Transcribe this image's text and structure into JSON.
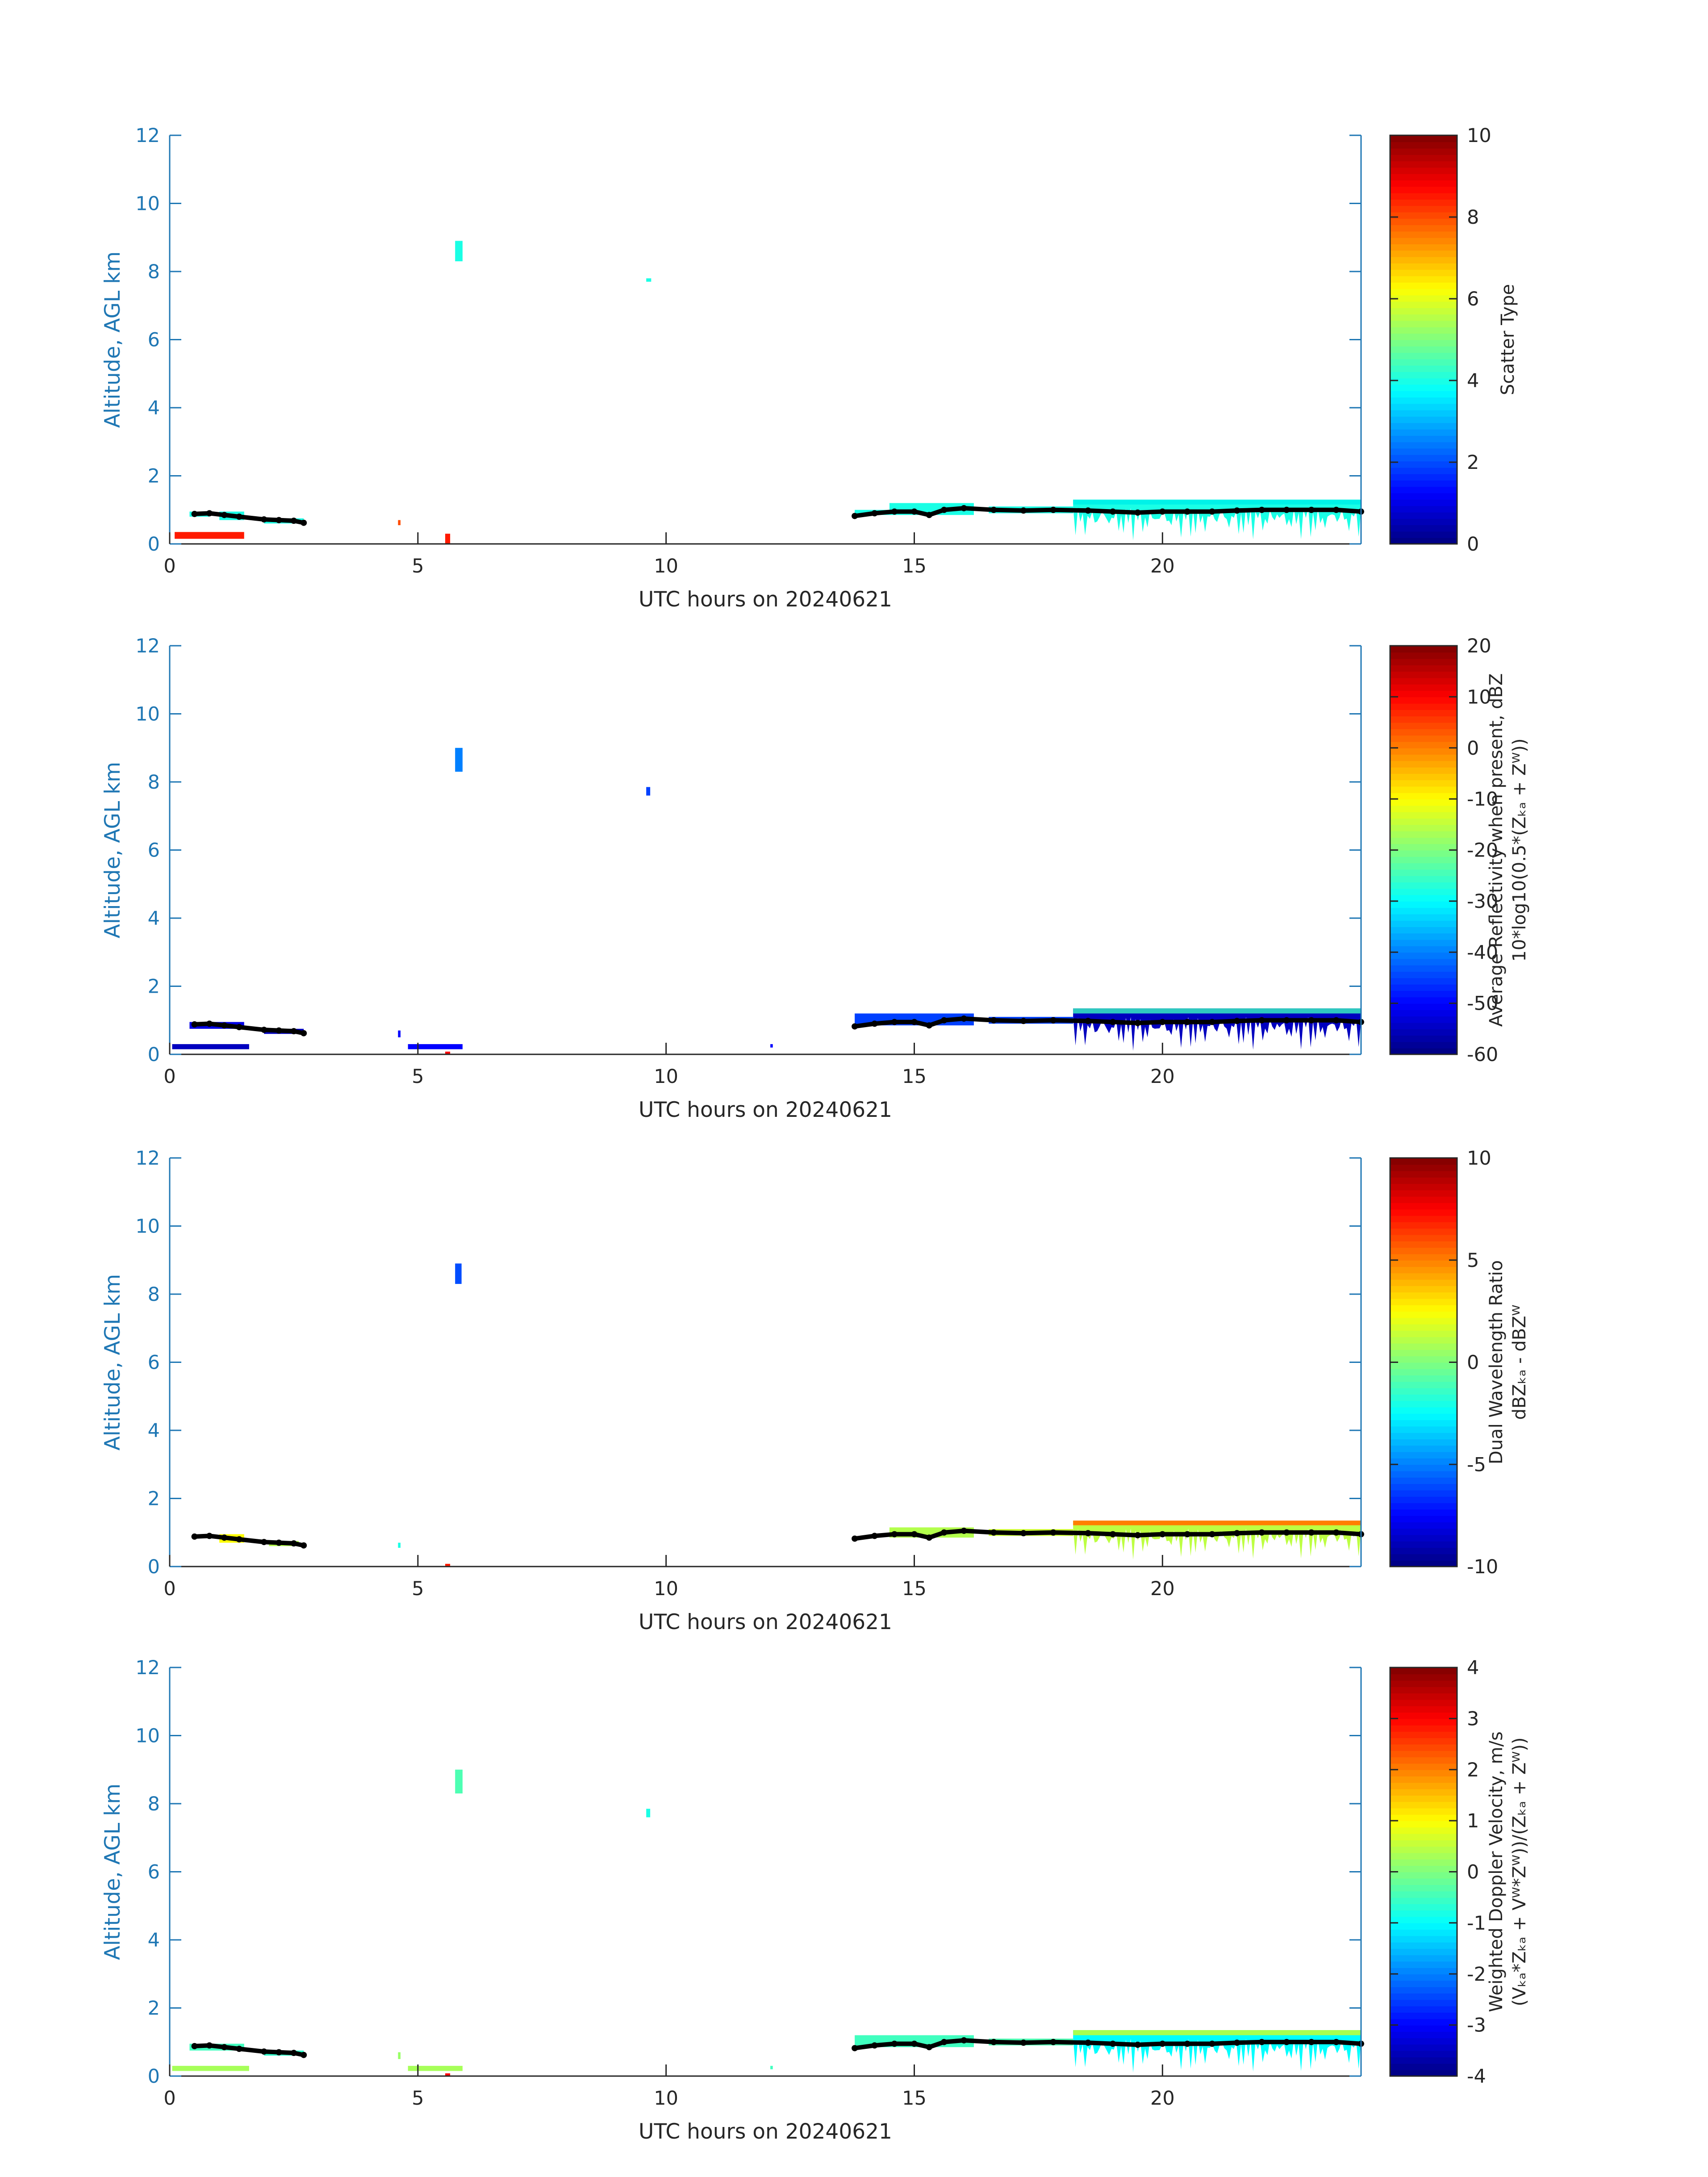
{
  "figure": {
    "xlabel": "UTC hours on 20240621",
    "ylabel": "Altitude, AGL km",
    "axis_color": "#1f77b4",
    "x_ticks": [
      0,
      5,
      10,
      15,
      20
    ],
    "y_ticks": [
      0,
      2,
      4,
      6,
      8,
      10,
      12
    ]
  },
  "chart_data": [
    {
      "type": "heatmap",
      "title": "",
      "xlabel": "UTC hours on 20240621",
      "ylabel": "Altitude, AGL km",
      "xlim": [
        0,
        24
      ],
      "ylim": [
        0,
        12
      ],
      "colormap": "jet",
      "colorbar": {
        "label_lines": [
          "Scatter Type"
        ],
        "ticks": [
          0,
          2,
          4,
          6,
          8,
          10
        ],
        "range": [
          0,
          10
        ]
      },
      "cloud_top_color": "#00f2e8",
      "features": [
        {
          "kind": "cloud",
          "x0": 0.4,
          "x1": 0.8,
          "y0": 0.8,
          "y1": 0.95,
          "value": 4.0
        },
        {
          "kind": "cloud",
          "x0": 1.0,
          "x1": 1.5,
          "y0": 0.7,
          "y1": 0.95,
          "value": 4.0
        },
        {
          "kind": "cloud",
          "x0": 1.9,
          "x1": 2.7,
          "y0": 0.6,
          "y1": 0.75,
          "value": 4.0
        },
        {
          "kind": "cloud",
          "x0": 5.75,
          "x1": 5.9,
          "y0": 8.3,
          "y1": 8.9,
          "value": 4.0
        },
        {
          "kind": "cloud",
          "x0": 9.6,
          "x1": 9.7,
          "y0": 7.7,
          "y1": 7.8,
          "value": 4.0
        },
        {
          "kind": "cloud",
          "x0": 13.8,
          "x1": 14.5,
          "y0": 0.85,
          "y1": 1.0,
          "value": 4.0
        },
        {
          "kind": "cloud",
          "x0": 14.5,
          "x1": 16.2,
          "y0": 0.85,
          "y1": 1.2,
          "value": 4.0
        },
        {
          "kind": "cloud",
          "x0": 16.5,
          "x1": 18.2,
          "y0": 0.9,
          "y1": 1.1,
          "value": 4.0
        },
        {
          "kind": "cloud",
          "x0": 18.2,
          "x1": 24.0,
          "y0": 0.1,
          "y1": 1.3,
          "value": 4.0
        },
        {
          "kind": "surface",
          "x0": 0.1,
          "x1": 1.5,
          "y0": 0.15,
          "y1": 0.35,
          "value": 8.5
        },
        {
          "kind": "surface",
          "x0": 4.6,
          "x1": 4.65,
          "y0": 0.55,
          "y1": 0.7,
          "value": 8.0
        },
        {
          "kind": "surface",
          "x0": 5.55,
          "x1": 5.65,
          "y0": 0.0,
          "y1": 0.3,
          "value": 8.5
        }
      ],
      "cloud_base": [
        {
          "x": 0.5,
          "y": 0.88
        },
        {
          "x": 0.8,
          "y": 0.9
        },
        {
          "x": 1.1,
          "y": 0.85
        },
        {
          "x": 1.4,
          "y": 0.8
        },
        {
          "x": 1.9,
          "y": 0.72
        },
        {
          "x": 2.2,
          "y": 0.7
        },
        {
          "x": 2.5,
          "y": 0.68
        },
        {
          "x": 2.7,
          "y": 0.62
        },
        {
          "x": 13.8,
          "y": 0.82
        },
        {
          "x": 14.2,
          "y": 0.9
        },
        {
          "x": 14.6,
          "y": 0.95
        },
        {
          "x": 15.0,
          "y": 0.95
        },
        {
          "x": 15.3,
          "y": 0.85
        },
        {
          "x": 15.6,
          "y": 1.0
        },
        {
          "x": 16.0,
          "y": 1.05
        },
        {
          "x": 16.6,
          "y": 1.0
        },
        {
          "x": 17.2,
          "y": 0.98
        },
        {
          "x": 17.8,
          "y": 1.0
        },
        {
          "x": 18.5,
          "y": 0.98
        },
        {
          "x": 19.0,
          "y": 0.95
        },
        {
          "x": 19.5,
          "y": 0.92
        },
        {
          "x": 20.0,
          "y": 0.95
        },
        {
          "x": 20.5,
          "y": 0.95
        },
        {
          "x": 21.0,
          "y": 0.95
        },
        {
          "x": 21.5,
          "y": 0.98
        },
        {
          "x": 22.0,
          "y": 1.0
        },
        {
          "x": 22.5,
          "y": 1.0
        },
        {
          "x": 23.0,
          "y": 1.0
        },
        {
          "x": 23.5,
          "y": 1.0
        },
        {
          "x": 24.0,
          "y": 0.95
        }
      ]
    },
    {
      "type": "heatmap",
      "title": "",
      "xlabel": "UTC hours on 20240621",
      "ylabel": "Altitude, AGL km",
      "xlim": [
        0,
        24
      ],
      "ylim": [
        0,
        12
      ],
      "colormap": "jet",
      "colorbar": {
        "label_lines": [
          "Average Reflectivity when present, dBZ",
          "10*log10(0.5*(Zₖₐ + Zᵂ))"
        ],
        "ticks": [
          -60,
          -50,
          -40,
          -30,
          -20,
          -10,
          0,
          10,
          20
        ],
        "range": [
          -60,
          20
        ]
      },
      "cloud_top_color": "#2fc8c0",
      "features": [
        {
          "kind": "cloud",
          "x0": 0.4,
          "x1": 1.5,
          "y0": 0.75,
          "y1": 0.95,
          "value": -52
        },
        {
          "kind": "cloud",
          "x0": 1.9,
          "x1": 2.7,
          "y0": 0.6,
          "y1": 0.75,
          "value": -55
        },
        {
          "kind": "cloud",
          "x0": 0.05,
          "x1": 1.6,
          "y0": 0.15,
          "y1": 0.3,
          "value": -55
        },
        {
          "kind": "cloud",
          "x0": 4.6,
          "x1": 4.65,
          "y0": 0.5,
          "y1": 0.7,
          "value": -50
        },
        {
          "kind": "cloud",
          "x0": 4.8,
          "x1": 5.9,
          "y0": 0.15,
          "y1": 0.3,
          "value": -50
        },
        {
          "kind": "cloud",
          "x0": 5.75,
          "x1": 5.9,
          "y0": 8.3,
          "y1": 9.0,
          "value": -40
        },
        {
          "kind": "cloud",
          "x0": 9.6,
          "x1": 9.68,
          "y0": 7.6,
          "y1": 7.85,
          "value": -45
        },
        {
          "kind": "cloud",
          "x0": 12.1,
          "x1": 12.15,
          "y0": 0.2,
          "y1": 0.3,
          "value": -50
        },
        {
          "kind": "cloud",
          "x0": 13.8,
          "x1": 16.2,
          "y0": 0.85,
          "y1": 1.2,
          "value": -45
        },
        {
          "kind": "cloud",
          "x0": 16.5,
          "x1": 18.2,
          "y0": 0.9,
          "y1": 1.1,
          "value": -45
        },
        {
          "kind": "cloud",
          "x0": 18.2,
          "x1": 24.0,
          "y0": 0.1,
          "y1": 1.35,
          "value": -55
        },
        {
          "kind": "surface",
          "x0": 5.55,
          "x1": 5.65,
          "y0": 0.0,
          "y1": 0.08,
          "value": 10
        }
      ],
      "cloud_base": [
        {
          "x": 0.5,
          "y": 0.88
        },
        {
          "x": 0.8,
          "y": 0.9
        },
        {
          "x": 1.1,
          "y": 0.85
        },
        {
          "x": 1.4,
          "y": 0.8
        },
        {
          "x": 1.9,
          "y": 0.72
        },
        {
          "x": 2.2,
          "y": 0.7
        },
        {
          "x": 2.5,
          "y": 0.68
        },
        {
          "x": 2.7,
          "y": 0.62
        },
        {
          "x": 13.8,
          "y": 0.82
        },
        {
          "x": 14.2,
          "y": 0.9
        },
        {
          "x": 14.6,
          "y": 0.95
        },
        {
          "x": 15.0,
          "y": 0.95
        },
        {
          "x": 15.3,
          "y": 0.85
        },
        {
          "x": 15.6,
          "y": 1.0
        },
        {
          "x": 16.0,
          "y": 1.05
        },
        {
          "x": 16.6,
          "y": 1.0
        },
        {
          "x": 17.2,
          "y": 0.98
        },
        {
          "x": 17.8,
          "y": 1.0
        },
        {
          "x": 18.5,
          "y": 0.98
        },
        {
          "x": 19.0,
          "y": 0.95
        },
        {
          "x": 19.5,
          "y": 0.92
        },
        {
          "x": 20.0,
          "y": 0.95
        },
        {
          "x": 20.5,
          "y": 0.95
        },
        {
          "x": 21.0,
          "y": 0.95
        },
        {
          "x": 21.5,
          "y": 0.98
        },
        {
          "x": 22.0,
          "y": 1.0
        },
        {
          "x": 22.5,
          "y": 1.0
        },
        {
          "x": 23.0,
          "y": 1.0
        },
        {
          "x": 23.5,
          "y": 1.0
        },
        {
          "x": 24.0,
          "y": 0.95
        }
      ]
    },
    {
      "type": "heatmap",
      "title": "",
      "xlabel": "UTC hours on 20240621",
      "ylabel": "Altitude, AGL km",
      "xlim": [
        0,
        24
      ],
      "ylim": [
        0,
        12
      ],
      "colormap": "jet",
      "colorbar": {
        "label_lines": [
          "Dual Wavelength Ratio",
          "dBZₖₐ - dBZᵂ"
        ],
        "ticks": [
          -10,
          -5,
          0,
          5,
          10
        ],
        "range": [
          -10,
          10
        ]
      },
      "cloud_top_color": "#ff7f00",
      "features": [
        {
          "kind": "cloud",
          "x0": 1.0,
          "x1": 1.5,
          "y0": 0.7,
          "y1": 0.95,
          "value": 2.5
        },
        {
          "kind": "cloud",
          "x0": 2.0,
          "x1": 2.6,
          "y0": 0.6,
          "y1": 0.75,
          "value": 1.0
        },
        {
          "kind": "cloud",
          "x0": 5.75,
          "x1": 5.88,
          "y0": 8.3,
          "y1": 8.9,
          "value": -6
        },
        {
          "kind": "cloud",
          "x0": 4.6,
          "x1": 4.65,
          "y0": 0.55,
          "y1": 0.7,
          "value": -2
        },
        {
          "kind": "cloud",
          "x0": 14.5,
          "x1": 16.2,
          "y0": 0.85,
          "y1": 1.15,
          "value": 1.0
        },
        {
          "kind": "cloud",
          "x0": 16.5,
          "x1": 18.2,
          "y0": 0.9,
          "y1": 1.1,
          "value": 1.5
        },
        {
          "kind": "cloud",
          "x0": 18.2,
          "x1": 24.0,
          "y0": 0.2,
          "y1": 1.35,
          "value": 1.2
        },
        {
          "kind": "surface",
          "x0": 5.55,
          "x1": 5.65,
          "y0": 0.0,
          "y1": 0.08,
          "value": 7
        }
      ],
      "cloud_base": [
        {
          "x": 0.5,
          "y": 0.88
        },
        {
          "x": 0.8,
          "y": 0.9
        },
        {
          "x": 1.1,
          "y": 0.85
        },
        {
          "x": 1.4,
          "y": 0.8
        },
        {
          "x": 1.9,
          "y": 0.72
        },
        {
          "x": 2.2,
          "y": 0.7
        },
        {
          "x": 2.5,
          "y": 0.68
        },
        {
          "x": 2.7,
          "y": 0.62
        },
        {
          "x": 13.8,
          "y": 0.82
        },
        {
          "x": 14.2,
          "y": 0.9
        },
        {
          "x": 14.6,
          "y": 0.95
        },
        {
          "x": 15.0,
          "y": 0.95
        },
        {
          "x": 15.3,
          "y": 0.85
        },
        {
          "x": 15.6,
          "y": 1.0
        },
        {
          "x": 16.0,
          "y": 1.05
        },
        {
          "x": 16.6,
          "y": 1.0
        },
        {
          "x": 17.2,
          "y": 0.98
        },
        {
          "x": 17.8,
          "y": 1.0
        },
        {
          "x": 18.5,
          "y": 0.98
        },
        {
          "x": 19.0,
          "y": 0.95
        },
        {
          "x": 19.5,
          "y": 0.92
        },
        {
          "x": 20.0,
          "y": 0.95
        },
        {
          "x": 20.5,
          "y": 0.95
        },
        {
          "x": 21.0,
          "y": 0.95
        },
        {
          "x": 21.5,
          "y": 0.98
        },
        {
          "x": 22.0,
          "y": 1.0
        },
        {
          "x": 22.5,
          "y": 1.0
        },
        {
          "x": 23.0,
          "y": 1.0
        },
        {
          "x": 23.5,
          "y": 1.0
        },
        {
          "x": 24.0,
          "y": 0.95
        }
      ]
    },
    {
      "type": "heatmap",
      "title": "",
      "xlabel": "UTC hours on 20240621",
      "ylabel": "Altitude, AGL km",
      "xlim": [
        0,
        24
      ],
      "ylim": [
        0,
        12
      ],
      "colormap": "jet",
      "colorbar": {
        "label_lines": [
          "Weighted Doppler Velocity, m/s",
          "(Vₖₐ*Zₖₐ + Vᵂ*Zᵂ))/(Zₖₐ + Zᵂ))"
        ],
        "ticks": [
          -4,
          -3,
          -2,
          -1,
          0,
          1,
          2,
          3,
          4
        ],
        "range": [
          -4,
          4
        ]
      },
      "cloud_top_color": "#a8ff50",
      "features": [
        {
          "kind": "cloud",
          "x0": 0.4,
          "x1": 1.5,
          "y0": 0.75,
          "y1": 0.95,
          "value": -0.5
        },
        {
          "kind": "cloud",
          "x0": 1.9,
          "x1": 2.7,
          "y0": 0.6,
          "y1": 0.75,
          "value": -0.6
        },
        {
          "kind": "cloud",
          "x0": 0.05,
          "x1": 1.6,
          "y0": 0.15,
          "y1": 0.3,
          "value": 0.3
        },
        {
          "kind": "cloud",
          "x0": 4.6,
          "x1": 4.65,
          "y0": 0.5,
          "y1": 0.7,
          "value": 0.2
        },
        {
          "kind": "cloud",
          "x0": 4.8,
          "x1": 5.9,
          "y0": 0.15,
          "y1": 0.3,
          "value": 0.3
        },
        {
          "kind": "cloud",
          "x0": 5.75,
          "x1": 5.9,
          "y0": 8.3,
          "y1": 9.0,
          "value": -0.4
        },
        {
          "kind": "cloud",
          "x0": 9.6,
          "x1": 9.68,
          "y0": 7.6,
          "y1": 7.85,
          "value": -0.8
        },
        {
          "kind": "cloud",
          "x0": 12.1,
          "x1": 12.15,
          "y0": 0.2,
          "y1": 0.3,
          "value": -0.5
        },
        {
          "kind": "cloud",
          "x0": 13.8,
          "x1": 16.2,
          "y0": 0.85,
          "y1": 1.2,
          "value": -0.5
        },
        {
          "kind": "cloud",
          "x0": 16.5,
          "x1": 18.2,
          "y0": 0.9,
          "y1": 1.1,
          "value": -0.4
        },
        {
          "kind": "cloud",
          "x0": 18.2,
          "x1": 24.0,
          "y0": 0.1,
          "y1": 1.35,
          "value": -1.0
        },
        {
          "kind": "surface",
          "x0": 5.55,
          "x1": 5.65,
          "y0": 0.0,
          "y1": 0.08,
          "value": 3
        }
      ],
      "cloud_base": [
        {
          "x": 0.5,
          "y": 0.88
        },
        {
          "x": 0.8,
          "y": 0.9
        },
        {
          "x": 1.1,
          "y": 0.85
        },
        {
          "x": 1.4,
          "y": 0.8
        },
        {
          "x": 1.9,
          "y": 0.72
        },
        {
          "x": 2.2,
          "y": 0.7
        },
        {
          "x": 2.5,
          "y": 0.68
        },
        {
          "x": 2.7,
          "y": 0.62
        },
        {
          "x": 13.8,
          "y": 0.82
        },
        {
          "x": 14.2,
          "y": 0.9
        },
        {
          "x": 14.6,
          "y": 0.95
        },
        {
          "x": 15.0,
          "y": 0.95
        },
        {
          "x": 15.3,
          "y": 0.85
        },
        {
          "x": 15.6,
          "y": 1.0
        },
        {
          "x": 16.0,
          "y": 1.05
        },
        {
          "x": 16.6,
          "y": 1.0
        },
        {
          "x": 17.2,
          "y": 0.98
        },
        {
          "x": 17.8,
          "y": 1.0
        },
        {
          "x": 18.5,
          "y": 0.98
        },
        {
          "x": 19.0,
          "y": 0.95
        },
        {
          "x": 19.5,
          "y": 0.92
        },
        {
          "x": 20.0,
          "y": 0.95
        },
        {
          "x": 20.5,
          "y": 0.95
        },
        {
          "x": 21.0,
          "y": 0.95
        },
        {
          "x": 21.5,
          "y": 0.98
        },
        {
          "x": 22.0,
          "y": 1.0
        },
        {
          "x": 22.5,
          "y": 1.0
        },
        {
          "x": 23.0,
          "y": 1.0
        },
        {
          "x": 23.5,
          "y": 1.0
        },
        {
          "x": 24.0,
          "y": 0.95
        }
      ]
    }
  ]
}
